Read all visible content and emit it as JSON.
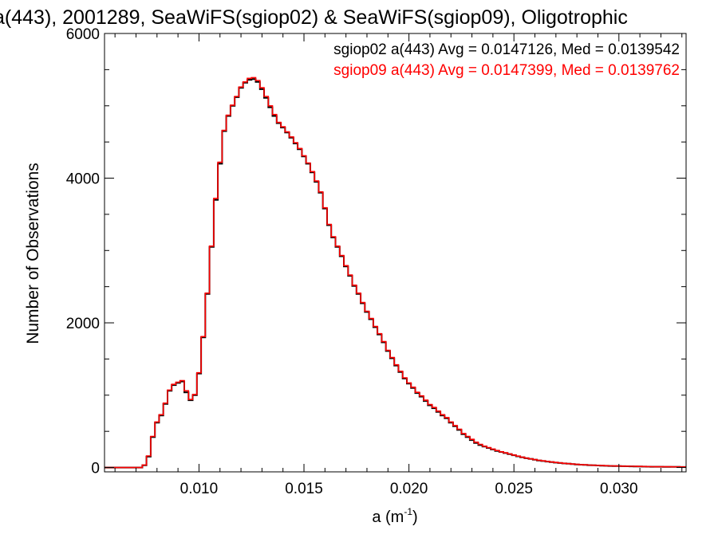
{
  "chart_data": {
    "type": "line",
    "title": "a(443), 2001289, SeaWiFS(sgiop02) & SeaWiFS(sgiop09), Oligotrophic",
    "xlabel": "a (m",
    "xlabel_sup": "-1",
    "xlabel_close": ")",
    "ylabel": "Number of Observations",
    "xlim": [
      0.0055,
      0.0332
    ],
    "ylim": [
      -60,
      6000
    ],
    "xticks": [
      0.01,
      0.015,
      0.02,
      0.025,
      0.03
    ],
    "xtick_labels": [
      "0.010",
      "0.015",
      "0.020",
      "0.025",
      "0.030"
    ],
    "yticks": [
      0,
      2000,
      4000,
      6000
    ],
    "ytick_labels": [
      "0",
      "2000",
      "4000",
      "6000"
    ],
    "grid": false,
    "legend_position": "top-right",
    "series": [
      {
        "name": "sgiop02 a(443) Avg = 0.0147126, Med = 0.0139542",
        "color": "#000000",
        "points": [
          [
            0.0055,
            0
          ],
          [
            0.007,
            0
          ],
          [
            0.0073,
            30
          ],
          [
            0.0075,
            150
          ],
          [
            0.0077,
            420
          ],
          [
            0.0079,
            620
          ],
          [
            0.0081,
            720
          ],
          [
            0.0083,
            880
          ],
          [
            0.0085,
            1060
          ],
          [
            0.0087,
            1140
          ],
          [
            0.0089,
            1170
          ],
          [
            0.0091,
            1190
          ],
          [
            0.0093,
            1040
          ],
          [
            0.0095,
            930
          ],
          [
            0.0097,
            1000
          ],
          [
            0.0099,
            1300
          ],
          [
            0.0101,
            1800
          ],
          [
            0.0103,
            2400
          ],
          [
            0.0105,
            3050
          ],
          [
            0.0107,
            3700
          ],
          [
            0.0109,
            4200
          ],
          [
            0.0111,
            4650
          ],
          [
            0.0113,
            4860
          ],
          [
            0.0115,
            5000
          ],
          [
            0.0117,
            5120
          ],
          [
            0.0119,
            5250
          ],
          [
            0.0121,
            5320
          ],
          [
            0.0123,
            5360
          ],
          [
            0.0125,
            5370
          ],
          [
            0.0127,
            5330
          ],
          [
            0.0129,
            5230
          ],
          [
            0.0131,
            5110
          ],
          [
            0.0133,
            4980
          ],
          [
            0.0135,
            4860
          ],
          [
            0.0137,
            4760
          ],
          [
            0.0139,
            4700
          ],
          [
            0.0141,
            4630
          ],
          [
            0.0143,
            4560
          ],
          [
            0.0145,
            4480
          ],
          [
            0.0147,
            4400
          ],
          [
            0.0149,
            4300
          ],
          [
            0.0151,
            4200
          ],
          [
            0.0153,
            4080
          ],
          [
            0.0155,
            3950
          ],
          [
            0.0157,
            3800
          ],
          [
            0.0159,
            3580
          ],
          [
            0.0161,
            3350
          ],
          [
            0.0163,
            3180
          ],
          [
            0.0165,
            3050
          ],
          [
            0.0167,
            2920
          ],
          [
            0.0169,
            2780
          ],
          [
            0.0171,
            2650
          ],
          [
            0.0173,
            2510
          ],
          [
            0.0175,
            2400
          ],
          [
            0.0177,
            2270
          ],
          [
            0.0179,
            2150
          ],
          [
            0.0181,
            2050
          ],
          [
            0.0183,
            1940
          ],
          [
            0.0185,
            1840
          ],
          [
            0.0187,
            1730
          ],
          [
            0.0189,
            1610
          ],
          [
            0.0191,
            1510
          ],
          [
            0.0193,
            1410
          ],
          [
            0.0195,
            1320
          ],
          [
            0.0197,
            1230
          ],
          [
            0.0199,
            1160
          ],
          [
            0.0201,
            1100
          ],
          [
            0.0203,
            1030
          ],
          [
            0.0205,
            980
          ],
          [
            0.0207,
            920
          ],
          [
            0.0209,
            860
          ],
          [
            0.0211,
            820
          ],
          [
            0.0213,
            770
          ],
          [
            0.0215,
            720
          ],
          [
            0.0217,
            680
          ],
          [
            0.0219,
            620
          ],
          [
            0.0221,
            570
          ],
          [
            0.0223,
            520
          ],
          [
            0.0225,
            460
          ],
          [
            0.0227,
            420
          ],
          [
            0.0229,
            380
          ],
          [
            0.0231,
            340
          ],
          [
            0.0233,
            310
          ],
          [
            0.0235,
            290
          ],
          [
            0.0237,
            270
          ],
          [
            0.0239,
            250
          ],
          [
            0.0241,
            230
          ],
          [
            0.0243,
            215
          ],
          [
            0.0245,
            200
          ],
          [
            0.0247,
            185
          ],
          [
            0.0249,
            170
          ],
          [
            0.0251,
            155
          ],
          [
            0.0253,
            140
          ],
          [
            0.0255,
            128
          ],
          [
            0.0257,
            118
          ],
          [
            0.0259,
            108
          ],
          [
            0.0261,
            98
          ],
          [
            0.0263,
            90
          ],
          [
            0.0265,
            82
          ],
          [
            0.0267,
            75
          ],
          [
            0.0269,
            68
          ],
          [
            0.0271,
            62
          ],
          [
            0.0273,
            57
          ],
          [
            0.0275,
            52
          ],
          [
            0.0277,
            47
          ],
          [
            0.0279,
            43
          ],
          [
            0.0281,
            39
          ],
          [
            0.0283,
            36
          ],
          [
            0.0285,
            33
          ],
          [
            0.0287,
            30
          ],
          [
            0.0289,
            28
          ],
          [
            0.0291,
            26
          ],
          [
            0.0293,
            24
          ],
          [
            0.0295,
            22
          ],
          [
            0.0297,
            20
          ],
          [
            0.0299,
            19
          ],
          [
            0.0301,
            18
          ],
          [
            0.0303,
            17
          ],
          [
            0.0305,
            16
          ],
          [
            0.0307,
            15
          ],
          [
            0.0309,
            14
          ],
          [
            0.0311,
            13
          ],
          [
            0.0313,
            12
          ],
          [
            0.0315,
            11
          ],
          [
            0.0317,
            10
          ],
          [
            0.0319,
            10
          ],
          [
            0.0321,
            9
          ],
          [
            0.0323,
            9
          ],
          [
            0.0325,
            8
          ],
          [
            0.0327,
            8
          ],
          [
            0.0329,
            7
          ],
          [
            0.0332,
            7
          ]
        ]
      },
      {
        "name": "sgiop09 a(443) Avg = 0.0147399, Med = 0.0139762",
        "color": "#ff0000",
        "points": [
          [
            0.0055,
            0
          ],
          [
            0.007,
            0
          ],
          [
            0.0073,
            35
          ],
          [
            0.0075,
            160
          ],
          [
            0.0077,
            430
          ],
          [
            0.0079,
            630
          ],
          [
            0.0081,
            730
          ],
          [
            0.0083,
            890
          ],
          [
            0.0085,
            1070
          ],
          [
            0.0087,
            1150
          ],
          [
            0.0089,
            1180
          ],
          [
            0.0091,
            1200
          ],
          [
            0.0093,
            1060
          ],
          [
            0.0095,
            940
          ],
          [
            0.0097,
            1010
          ],
          [
            0.0099,
            1310
          ],
          [
            0.0101,
            1810
          ],
          [
            0.0103,
            2410
          ],
          [
            0.0105,
            3060
          ],
          [
            0.0107,
            3720
          ],
          [
            0.0109,
            4220
          ],
          [
            0.0111,
            4660
          ],
          [
            0.0113,
            4870
          ],
          [
            0.0115,
            5010
          ],
          [
            0.0117,
            5130
          ],
          [
            0.0119,
            5260
          ],
          [
            0.0121,
            5330
          ],
          [
            0.0123,
            5380
          ],
          [
            0.0125,
            5390
          ],
          [
            0.0127,
            5350
          ],
          [
            0.0129,
            5250
          ],
          [
            0.0131,
            5130
          ],
          [
            0.0133,
            5000
          ],
          [
            0.0135,
            4880
          ],
          [
            0.0137,
            4770
          ],
          [
            0.0139,
            4710
          ],
          [
            0.0141,
            4640
          ],
          [
            0.0143,
            4570
          ],
          [
            0.0145,
            4490
          ],
          [
            0.0147,
            4410
          ],
          [
            0.0149,
            4310
          ],
          [
            0.0151,
            4210
          ],
          [
            0.0153,
            4090
          ],
          [
            0.0155,
            3960
          ],
          [
            0.0157,
            3810
          ],
          [
            0.0159,
            3590
          ],
          [
            0.0161,
            3360
          ],
          [
            0.0163,
            3190
          ],
          [
            0.0165,
            3060
          ],
          [
            0.0167,
            2930
          ],
          [
            0.0169,
            2790
          ],
          [
            0.0171,
            2660
          ],
          [
            0.0173,
            2520
          ],
          [
            0.0175,
            2410
          ],
          [
            0.0177,
            2280
          ],
          [
            0.0179,
            2160
          ],
          [
            0.0181,
            2060
          ],
          [
            0.0183,
            1950
          ],
          [
            0.0185,
            1850
          ],
          [
            0.0187,
            1740
          ],
          [
            0.0189,
            1620
          ],
          [
            0.0191,
            1520
          ],
          [
            0.0193,
            1420
          ],
          [
            0.0195,
            1330
          ],
          [
            0.0197,
            1240
          ],
          [
            0.0199,
            1170
          ],
          [
            0.0201,
            1110
          ],
          [
            0.0203,
            1040
          ],
          [
            0.0205,
            990
          ],
          [
            0.0207,
            930
          ],
          [
            0.0209,
            870
          ],
          [
            0.0211,
            830
          ],
          [
            0.0213,
            780
          ],
          [
            0.0215,
            730
          ],
          [
            0.0217,
            690
          ],
          [
            0.0219,
            630
          ],
          [
            0.0221,
            580
          ],
          [
            0.0223,
            530
          ],
          [
            0.0225,
            470
          ],
          [
            0.0227,
            430
          ],
          [
            0.0229,
            390
          ],
          [
            0.0231,
            350
          ],
          [
            0.0233,
            320
          ],
          [
            0.0235,
            295
          ],
          [
            0.0237,
            275
          ],
          [
            0.0239,
            255
          ],
          [
            0.0241,
            235
          ],
          [
            0.0243,
            218
          ],
          [
            0.0245,
            203
          ],
          [
            0.0247,
            188
          ],
          [
            0.0249,
            173
          ],
          [
            0.0251,
            158
          ],
          [
            0.0253,
            143
          ],
          [
            0.0255,
            131
          ],
          [
            0.0257,
            120
          ],
          [
            0.0259,
            110
          ],
          [
            0.0261,
            100
          ],
          [
            0.0263,
            92
          ],
          [
            0.0265,
            84
          ],
          [
            0.0267,
            77
          ],
          [
            0.0269,
            70
          ],
          [
            0.0271,
            64
          ],
          [
            0.0273,
            58
          ],
          [
            0.0275,
            53
          ],
          [
            0.0277,
            48
          ],
          [
            0.0279,
            44
          ],
          [
            0.0281,
            40
          ],
          [
            0.0283,
            37
          ],
          [
            0.0285,
            34
          ],
          [
            0.0287,
            31
          ],
          [
            0.0289,
            29
          ],
          [
            0.0291,
            27
          ],
          [
            0.0293,
            25
          ],
          [
            0.0295,
            23
          ],
          [
            0.0297,
            21
          ],
          [
            0.0299,
            20
          ],
          [
            0.0301,
            19
          ],
          [
            0.0303,
            18
          ],
          [
            0.0305,
            17
          ],
          [
            0.0307,
            16
          ],
          [
            0.0309,
            15
          ],
          [
            0.0311,
            14
          ],
          [
            0.0313,
            13
          ],
          [
            0.0315,
            12
          ],
          [
            0.0317,
            11
          ],
          [
            0.0319,
            11
          ],
          [
            0.0321,
            10
          ],
          [
            0.0323,
            10
          ],
          [
            0.0325,
            9
          ],
          [
            0.0327,
            9
          ],
          [
            0.0329,
            8
          ],
          [
            0.0332,
            8
          ]
        ]
      }
    ]
  }
}
